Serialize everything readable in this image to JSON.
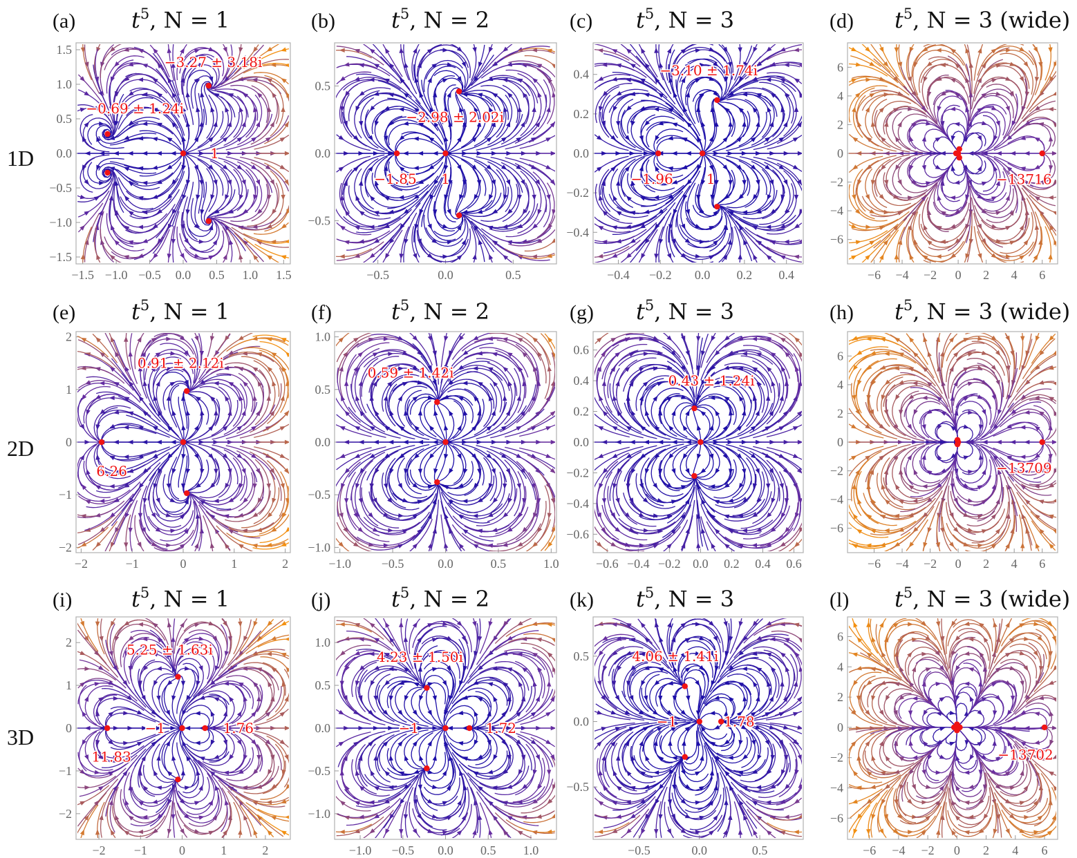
{
  "rows": [
    {
      "label": "1D"
    },
    {
      "label": "2D"
    },
    {
      "label": "3D"
    }
  ],
  "colors": {
    "slow": "#1c0fa8",
    "mid": "#6a2fa0",
    "fast": "#f39010",
    "fixed_point": "#f01414",
    "annotation": "#f01010",
    "frame": "#b0b0b0"
  },
  "chart_data": [
    {
      "type": "streamplot",
      "letter": "(a)",
      "title": {
        "base": "t",
        "exp": "5",
        "rest": ", N = 1"
      },
      "row": 0,
      "xlim": [
        -1.6,
        1.6
      ],
      "ylim": [
        -1.6,
        1.6
      ],
      "xticks": [
        -1.5,
        -1.0,
        -0.5,
        0.0,
        0.5,
        1.0,
        1.5
      ],
      "yticks": [
        -1.5,
        -1.0,
        -0.5,
        0.0,
        0.5,
        1.0,
        1.5
      ],
      "decimals": 1,
      "fixed_points": [
        [
          0,
          0
        ],
        [
          -1.13,
          0.28
        ],
        [
          -1.13,
          -0.28
        ],
        [
          0.38,
          0.98
        ],
        [
          0.38,
          -0.98
        ]
      ],
      "annotations": [
        {
          "text": "−3.27 ± 3.18i",
          "at": [
            0.45,
            1.32
          ]
        },
        {
          "text": "−0.69 ± 1.24i",
          "at": [
            -0.72,
            0.65
          ]
        },
        {
          "text": "1",
          "at": [
            0.47,
            0.0
          ]
        }
      ]
    },
    {
      "type": "streamplot",
      "letter": "(b)",
      "title": {
        "base": "t",
        "exp": "5",
        "rest": ", N = 2"
      },
      "row": 0,
      "xlim": [
        -0.82,
        0.82
      ],
      "ylim": [
        -0.82,
        0.82
      ],
      "xticks": [
        -0.5,
        0.0,
        0.5
      ],
      "yticks": [
        -0.5,
        0.0,
        0.5
      ],
      "decimals": 1,
      "fixed_points": [
        [
          0,
          0
        ],
        [
          -0.36,
          0
        ],
        [
          0.1,
          0.46
        ],
        [
          0.1,
          -0.46
        ]
      ],
      "annotations": [
        {
          "text": "−2.98 ± 2.02i",
          "at": [
            0.07,
            0.27
          ]
        },
        {
          "text": "−1.85",
          "at": [
            -0.37,
            -0.19
          ]
        },
        {
          "text": "1",
          "at": [
            0.0,
            -0.19
          ]
        }
      ]
    },
    {
      "type": "streamplot",
      "letter": "(c)",
      "title": {
        "base": "t",
        "exp": "5",
        "rest": ", N = 3"
      },
      "row": 0,
      "xlim": [
        -0.52,
        0.48
      ],
      "ylim": [
        -0.56,
        0.56
      ],
      "xticks": [
        -0.4,
        -0.2,
        0.0,
        0.2,
        0.4
      ],
      "yticks": [
        -0.4,
        -0.2,
        0.0,
        0.2,
        0.4
      ],
      "decimals": 1,
      "fixed_points": [
        [
          0,
          0
        ],
        [
          -0.21,
          0
        ],
        [
          0.07,
          0.27
        ],
        [
          0.07,
          -0.27
        ]
      ],
      "annotations": [
        {
          "text": "−3.10 ± 1.74i",
          "at": [
            0.03,
            0.42
          ]
        },
        {
          "text": "−1.96",
          "at": [
            -0.24,
            -0.13
          ]
        },
        {
          "text": "1",
          "at": [
            0.04,
            -0.13
          ]
        }
      ]
    },
    {
      "type": "streamplot",
      "letter": "(d)",
      "title": {
        "base": "t",
        "exp": "5",
        "rest": ", N = 3 (wide)"
      },
      "row": 0,
      "xlim": [
        -7.9,
        7.1
      ],
      "ylim": [
        -7.7,
        7.7
      ],
      "xticks": [
        -6,
        -4,
        -2,
        0,
        2,
        4,
        6
      ],
      "yticks": [
        -6,
        -4,
        -2,
        0,
        2,
        4,
        6
      ],
      "decimals": 0,
      "fixed_points": [
        [
          0,
          0
        ],
        [
          -0.15,
          0
        ],
        [
          0.08,
          0.3
        ],
        [
          0.08,
          -0.3
        ],
        [
          6,
          0
        ]
      ],
      "annotations": [
        {
          "text": "−13716",
          "at": [
            4.7,
            -1.8
          ]
        }
      ]
    },
    {
      "type": "streamplot",
      "letter": "(e)",
      "title": {
        "base": "t",
        "exp": "5",
        "rest": ", N = 1"
      },
      "row": 1,
      "xlim": [
        -2.1,
        2.1
      ],
      "ylim": [
        -2.1,
        2.1
      ],
      "xticks": [
        -2,
        -1,
        0,
        1,
        2
      ],
      "yticks": [
        -2,
        -1,
        0,
        1,
        2
      ],
      "decimals": 0,
      "fixed_points": [
        [
          0,
          0
        ],
        [
          -1.6,
          0
        ],
        [
          0.07,
          0.97
        ],
        [
          0.07,
          -0.97
        ]
      ],
      "annotations": [
        {
          "text": "0.91 ± 2.12i",
          "at": [
            -0.05,
            1.5
          ]
        },
        {
          "text": "6.26",
          "at": [
            -1.4,
            -0.55
          ]
        }
      ]
    },
    {
      "type": "streamplot",
      "letter": "(f)",
      "title": {
        "base": "t",
        "exp": "5",
        "rest": ", N = 2"
      },
      "row": 1,
      "xlim": [
        -1.05,
        1.05
      ],
      "ylim": [
        -1.05,
        1.05
      ],
      "xticks": [
        -1.0,
        -0.5,
        0.0,
        0.5,
        1.0
      ],
      "yticks": [
        -1.0,
        -0.5,
        0.0,
        0.5,
        1.0
      ],
      "decimals": 1,
      "fixed_points": [
        [
          0,
          0
        ],
        [
          -0.08,
          0.38
        ],
        [
          -0.08,
          -0.38
        ]
      ],
      "annotations": [
        {
          "text": "0.59 ± 1.42i",
          "at": [
            -0.33,
            0.66
          ]
        }
      ]
    },
    {
      "type": "streamplot",
      "letter": "(g)",
      "title": {
        "base": "t",
        "exp": "5",
        "rest": ", N = 3"
      },
      "row": 1,
      "xlim": [
        -0.69,
        0.66
      ],
      "ylim": [
        -0.72,
        0.72
      ],
      "xticks": [
        -0.6,
        -0.4,
        -0.2,
        0.0,
        0.2,
        0.4,
        0.6
      ],
      "yticks": [
        -0.6,
        -0.4,
        -0.2,
        0.0,
        0.2,
        0.4,
        0.6
      ],
      "decimals": 1,
      "fixed_points": [
        [
          0,
          0
        ],
        [
          -0.04,
          0.22
        ],
        [
          -0.04,
          -0.22
        ]
      ],
      "annotations": [
        {
          "text": "0.43 ± 1.24i",
          "at": [
            0.07,
            0.4
          ]
        }
      ]
    },
    {
      "type": "streamplot",
      "letter": "(h)",
      "title": {
        "base": "t",
        "exp": "5",
        "rest": ", N = 3 (wide)"
      },
      "row": 1,
      "xlim": [
        -7.9,
        7.1
      ],
      "ylim": [
        -7.7,
        7.7
      ],
      "xticks": [
        -6,
        -4,
        -2,
        0,
        2,
        4,
        6
      ],
      "yticks": [
        -6,
        -4,
        -2,
        0,
        2,
        4,
        6
      ],
      "decimals": 0,
      "fixed_points": [
        [
          0,
          0
        ],
        [
          -0.05,
          0.15
        ],
        [
          -0.05,
          -0.15
        ],
        [
          6,
          0
        ]
      ],
      "annotations": [
        {
          "text": "−13709",
          "at": [
            4.7,
            -1.8
          ]
        }
      ]
    },
    {
      "type": "streamplot",
      "letter": "(i)",
      "title": {
        "base": "t",
        "exp": "5",
        "rest": ", N = 1"
      },
      "row": 2,
      "xlim": [
        -2.55,
        2.6
      ],
      "ylim": [
        -2.6,
        2.6
      ],
      "xticks": [
        -2,
        -1,
        0,
        1,
        2
      ],
      "yticks": [
        -2,
        -1,
        0,
        1,
        2
      ],
      "decimals": 0,
      "fixed_points": [
        [
          0,
          0
        ],
        [
          -1.8,
          0
        ],
        [
          0.55,
          0
        ],
        [
          -0.1,
          1.2
        ],
        [
          -0.1,
          -1.2
        ]
      ],
      "annotations": [
        {
          "text": "5.25 ± 1.63i",
          "at": [
            -0.3,
            1.83
          ]
        },
        {
          "text": "−1",
          "at": [
            -0.65,
            0
          ]
        },
        {
          "text": "1.76",
          "at": [
            1.35,
            0
          ]
        },
        {
          "text": "11.83",
          "at": [
            -1.7,
            -0.67
          ]
        }
      ]
    },
    {
      "type": "streamplot",
      "letter": "(j)",
      "title": {
        "base": "t",
        "exp": "5",
        "rest": ", N = 2"
      },
      "row": 2,
      "xlim": [
        -1.3,
        1.3
      ],
      "ylim": [
        -1.3,
        1.3
      ],
      "xticks": [
        -1.0,
        -0.5,
        0.0,
        0.5,
        1.0
      ],
      "yticks": [
        -1.0,
        -0.5,
        0.0,
        0.5,
        1.0
      ],
      "decimals": 1,
      "fixed_points": [
        [
          0,
          0
        ],
        [
          0.28,
          0
        ],
        [
          -0.22,
          0.47
        ],
        [
          -0.22,
          -0.47
        ]
      ],
      "annotations": [
        {
          "text": "4.23 ± 1.50i",
          "at": [
            -0.3,
            0.83
          ]
        },
        {
          "text": "−1",
          "at": [
            -0.43,
            0
          ]
        },
        {
          "text": "1.72",
          "at": [
            0.65,
            0
          ]
        }
      ]
    },
    {
      "type": "streamplot",
      "letter": "(k)",
      "title": {
        "base": "t",
        "exp": "5",
        "rest": ", N = 3"
      },
      "row": 2,
      "xlim": [
        -0.88,
        0.86
      ],
      "ylim": [
        -0.9,
        0.8
      ],
      "xticks": [
        -0.5,
        0.0,
        0.5
      ],
      "yticks": [
        -0.5,
        0.0,
        0.5
      ],
      "decimals": 1,
      "fixed_points": [
        [
          0,
          0
        ],
        [
          0.18,
          0
        ],
        [
          -0.12,
          0.27
        ],
        [
          -0.12,
          -0.27
        ]
      ],
      "annotations": [
        {
          "text": "4.06 ± 1.41i",
          "at": [
            -0.2,
            0.5
          ]
        },
        {
          "text": "−1",
          "at": [
            -0.27,
            0
          ]
        },
        {
          "text": "1.78",
          "at": [
            0.33,
            0
          ]
        }
      ]
    },
    {
      "type": "streamplot",
      "letter": "(l)",
      "title": {
        "base": "t",
        "exp": "5",
        "rest": ", N = 3 (wide)"
      },
      "row": 2,
      "xlim": [
        -7.5,
        6.9
      ],
      "ylim": [
        -7.4,
        7.3
      ],
      "xticks": [
        -6,
        -4,
        -2,
        0,
        2,
        4,
        6
      ],
      "yticks": [
        -6,
        -4,
        -2,
        0,
        2,
        4,
        6
      ],
      "decimals": 0,
      "fixed_points": [
        [
          0,
          0
        ],
        [
          -0.2,
          0
        ],
        [
          0.2,
          0
        ],
        [
          0,
          0.2
        ],
        [
          0,
          -0.2
        ],
        [
          6,
          0
        ]
      ],
      "annotations": [
        {
          "text": "−13702",
          "at": [
            4.7,
            -1.8
          ]
        }
      ]
    }
  ]
}
